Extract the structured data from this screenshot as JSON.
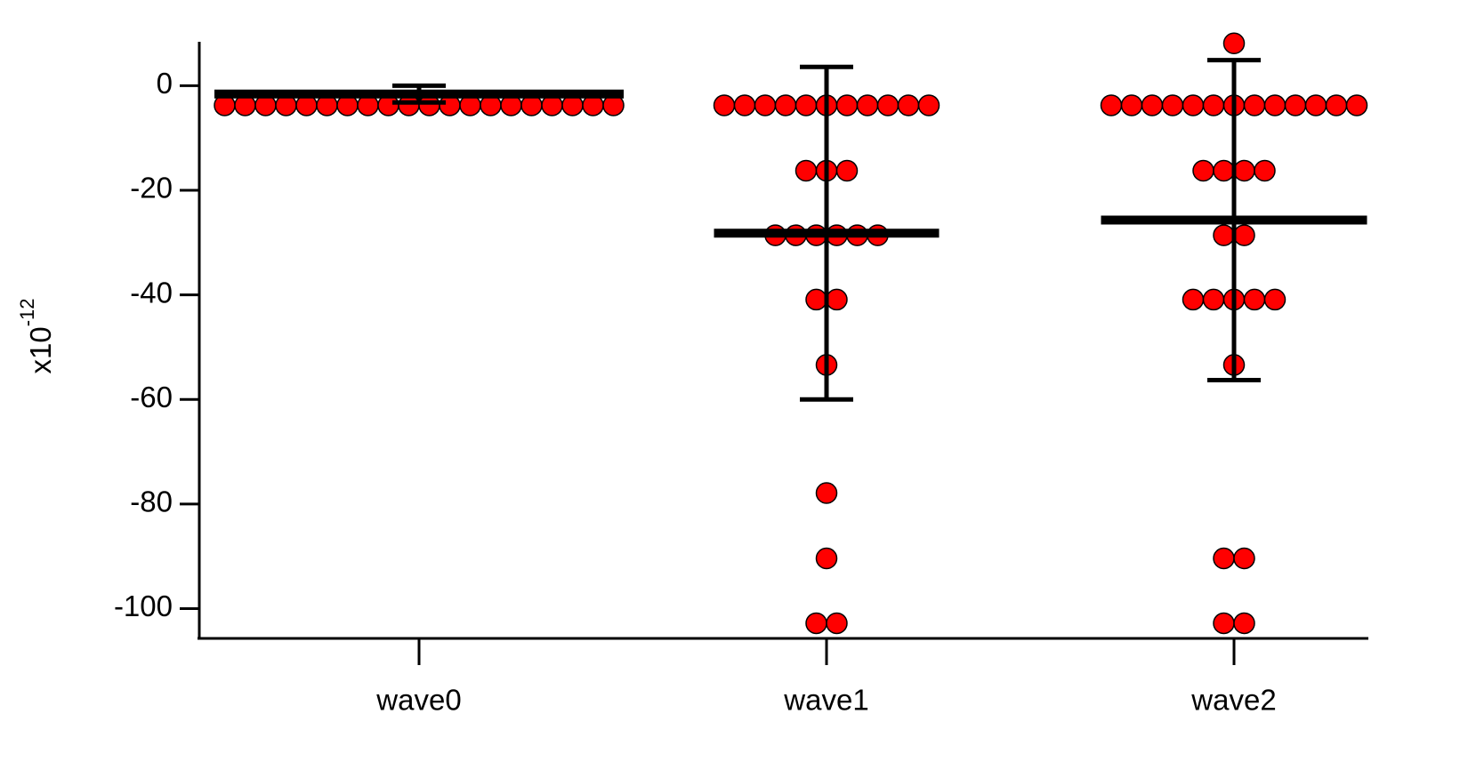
{
  "chart_data": {
    "type": "dotplot",
    "y_label": {
      "base": "x10",
      "exponent": "-12"
    },
    "categories": [
      "wave0",
      "wave1",
      "wave2"
    ],
    "values": [
      [
        -3.75,
        -3.75,
        -3.75,
        -3.75,
        -3.75,
        -3.75,
        -3.75,
        -3.75,
        -3.75,
        -3.75,
        -3.75,
        -3.75,
        -3.75,
        -3.75,
        -3.75,
        -3.75,
        -3.75,
        -3.75,
        -3.75,
        -3.75
      ],
      [
        -3.75,
        -3.75,
        -3.75,
        -3.75,
        -3.75,
        -3.75,
        -3.75,
        -3.75,
        -3.75,
        -3.75,
        -3.75,
        -16.25,
        -16.25,
        -16.25,
        -28.6,
        -28.6,
        -28.6,
        -28.6,
        -28.6,
        -28.6,
        -40.9,
        -40.9,
        -53.4,
        -77.9,
        -90.4,
        -102.8,
        -102.8
      ],
      [
        8.1,
        -3.75,
        -3.75,
        -3.75,
        -3.75,
        -3.75,
        -3.75,
        -3.75,
        -3.75,
        -3.75,
        -3.75,
        -3.75,
        -3.75,
        -3.75,
        -16.25,
        -16.25,
        -16.25,
        -16.25,
        -28.6,
        -28.6,
        -40.9,
        -40.9,
        -40.9,
        -40.9,
        -40.9,
        -53.4,
        -90.4,
        -90.4,
        -102.8,
        -102.8
      ]
    ],
    "means": [
      -1.6,
      -28.2,
      -25.7
    ],
    "errors": [
      1.6,
      31.8,
      30.6
    ],
    "color": "#ff0000",
    "ylim": [
      -105.7,
      8.4
    ],
    "yticks": [
      0,
      -20,
      -40,
      -60,
      -80,
      -100
    ]
  }
}
